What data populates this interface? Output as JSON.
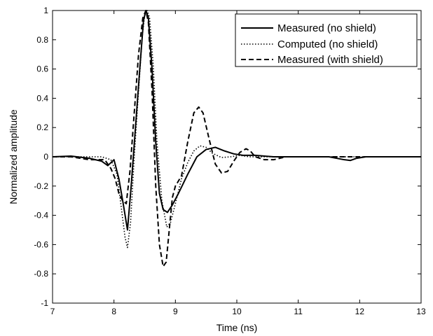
{
  "chart_data": {
    "type": "line",
    "title": "",
    "xlabel": "Time (ns)",
    "ylabel": "Normalized amplitude",
    "xlim": [
      7,
      13
    ],
    "ylim": [
      -1,
      1
    ],
    "xticks": [
      7,
      8,
      9,
      10,
      11,
      12,
      13
    ],
    "yticks": [
      -1,
      -0.8,
      -0.6,
      -0.4,
      -0.2,
      0,
      0.2,
      0.4,
      0.6,
      0.8,
      1
    ],
    "xtick_labels": [
      "7",
      "8",
      "9",
      "10",
      "11",
      "12",
      "13"
    ],
    "ytick_labels": [
      "-1",
      "-0.8",
      "-0.6",
      "-0.4",
      "-0.2",
      "0",
      "0.2",
      "0.4",
      "0.6",
      "0.8",
      "1"
    ],
    "grid": false,
    "legend_position": "top-right",
    "series": [
      {
        "name": "Measured (no shield)",
        "style": "solid",
        "color": "#000000",
        "x": [
          7.0,
          7.3,
          7.6,
          7.8,
          7.9,
          8.0,
          8.08,
          8.15,
          8.22,
          8.28,
          8.35,
          8.42,
          8.48,
          8.52,
          8.56,
          8.62,
          8.68,
          8.74,
          8.8,
          8.87,
          8.95,
          9.05,
          9.2,
          9.35,
          9.5,
          9.65,
          9.8,
          9.95,
          10.1,
          10.3,
          10.6,
          11.0,
          11.5,
          11.75,
          11.85,
          11.95,
          12.1,
          12.5,
          13.0
        ],
        "y": [
          0.0,
          0.005,
          -0.01,
          -0.03,
          -0.06,
          -0.02,
          -0.15,
          -0.32,
          -0.5,
          -0.2,
          0.2,
          0.6,
          0.93,
          1.0,
          0.95,
          0.6,
          0.1,
          -0.25,
          -0.36,
          -0.38,
          -0.33,
          -0.25,
          -0.12,
          0.0,
          0.05,
          0.065,
          0.04,
          0.02,
          0.01,
          0.01,
          0.0,
          0.0,
          0.0,
          -0.02,
          -0.025,
          -0.01,
          0.0,
          0.0,
          0.0
        ]
      },
      {
        "name": "Computed (no shield)",
        "style": "dotted",
        "color": "#000000",
        "x": [
          7.0,
          7.5,
          7.8,
          7.95,
          8.05,
          8.12,
          8.18,
          8.22,
          8.27,
          8.33,
          8.4,
          8.46,
          8.5,
          8.54,
          8.58,
          8.64,
          8.7,
          8.78,
          8.86,
          8.92,
          9.0,
          9.1,
          9.2,
          9.3,
          9.4,
          9.5,
          9.6,
          9.75,
          9.9,
          10.05,
          10.2,
          10.5,
          11.0,
          12.0,
          13.0
        ],
        "y": [
          0.0,
          0.0,
          0.0,
          -0.02,
          -0.12,
          -0.35,
          -0.55,
          -0.62,
          -0.45,
          0.0,
          0.45,
          0.82,
          0.97,
          1.0,
          0.95,
          0.62,
          0.1,
          -0.3,
          -0.48,
          -0.45,
          -0.32,
          -0.15,
          -0.04,
          0.04,
          0.075,
          0.065,
          0.025,
          -0.005,
          0.0,
          0.01,
          0.0,
          0.0,
          0.0,
          0.0,
          0.0
        ]
      },
      {
        "name": "Measured (with shield)",
        "style": "dashed",
        "color": "#000000",
        "x": [
          7.0,
          7.3,
          7.6,
          7.85,
          7.95,
          8.02,
          8.08,
          8.14,
          8.2,
          8.26,
          8.33,
          8.4,
          8.47,
          8.52,
          8.56,
          8.62,
          8.68,
          8.74,
          8.8,
          8.85,
          8.9,
          8.95,
          9.0,
          9.1,
          9.2,
          9.3,
          9.38,
          9.45,
          9.55,
          9.65,
          9.75,
          9.85,
          9.95,
          10.05,
          10.15,
          10.22,
          10.3,
          10.45,
          10.6,
          10.8,
          11.2,
          11.6,
          12.0,
          12.5,
          13.0
        ],
        "y": [
          0.0,
          0.0,
          -0.02,
          -0.02,
          -0.08,
          -0.15,
          -0.25,
          -0.3,
          -0.32,
          -0.1,
          0.3,
          0.7,
          0.95,
          1.0,
          0.92,
          0.45,
          -0.2,
          -0.6,
          -0.75,
          -0.72,
          -0.5,
          -0.28,
          -0.2,
          -0.13,
          0.1,
          0.3,
          0.34,
          0.3,
          0.12,
          -0.05,
          -0.11,
          -0.1,
          -0.03,
          0.03,
          0.055,
          0.04,
          0.0,
          -0.02,
          -0.02,
          0.0,
          0.0,
          0.0,
          0.0,
          0.0,
          0.0
        ]
      }
    ]
  }
}
